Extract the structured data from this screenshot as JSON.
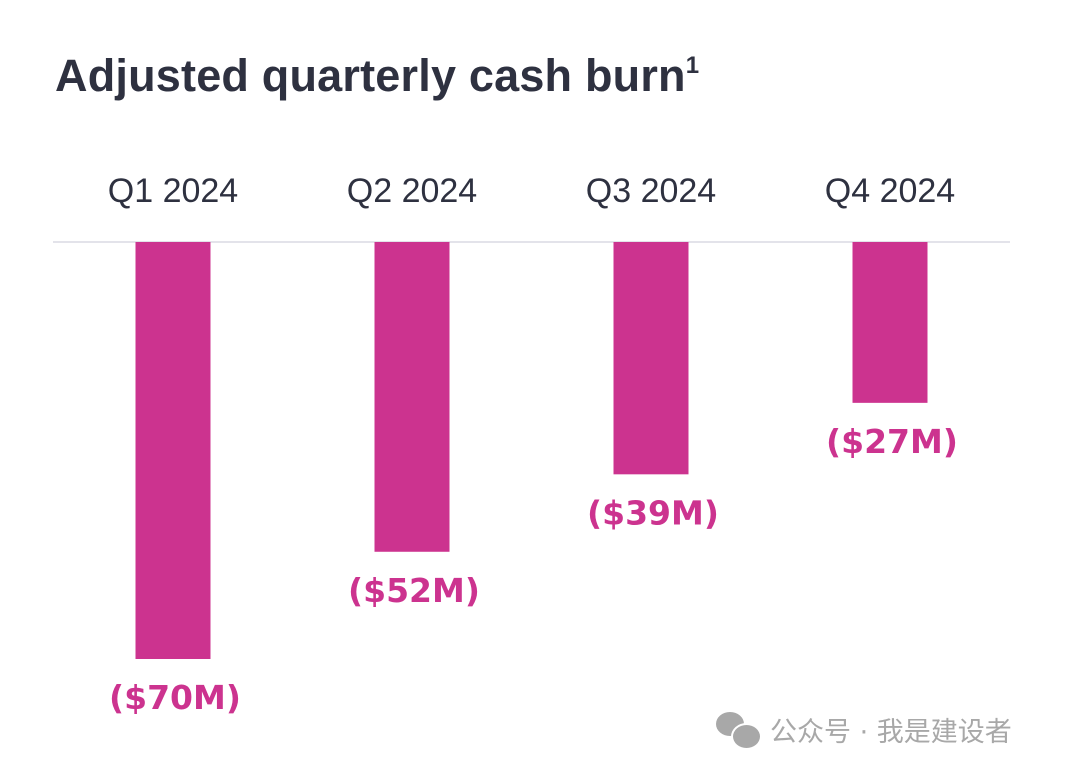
{
  "chart_data": {
    "type": "bar",
    "title": "Adjusted quarterly cash burn",
    "title_footnote": "1",
    "categories": [
      "Q1 2024",
      "Q2 2024",
      "Q3 2024",
      "Q4 2024"
    ],
    "values": [
      -70,
      -52,
      -39,
      -27
    ],
    "data_labels": [
      "($70M)",
      "($52M)",
      "($39M)",
      "($27M)"
    ],
    "unit": "USD millions",
    "ylim": [
      -75,
      0
    ],
    "grid": false,
    "category_axis_position": "top",
    "bar_color": "#CC338F",
    "text_color": "#2E3140",
    "baseline_color": "#E3E3EA"
  },
  "watermark": {
    "text": "公众号 · 我是建设者",
    "icon": "wechat-icon"
  }
}
